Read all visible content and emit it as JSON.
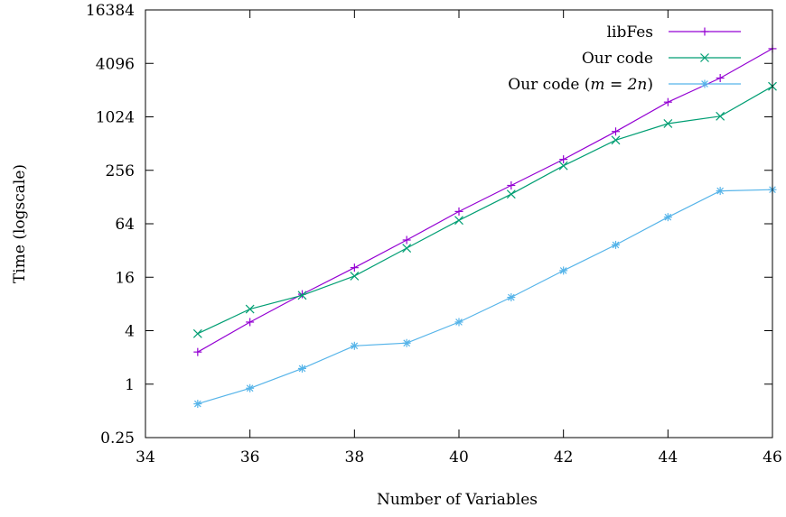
{
  "chart_data": {
    "type": "line",
    "xlabel": "Number of Variables",
    "ylabel": "Time (logscale)",
    "x_scale": "linear",
    "y_scale": "log2",
    "xlim": [
      34,
      46
    ],
    "ylim": [
      0.25,
      16384
    ],
    "x_ticks": [
      "34",
      "36",
      "38",
      "40",
      "42",
      "44",
      "46"
    ],
    "y_ticks": [
      "0.25",
      "1",
      "4",
      "16",
      "64",
      "256",
      "1024",
      "4096",
      "16384"
    ],
    "x_tick_values": [
      34,
      36,
      38,
      40,
      42,
      44,
      46
    ],
    "y_tick_values": [
      0.25,
      1,
      4,
      16,
      64,
      256,
      1024,
      4096,
      16384
    ],
    "legend_position": "top-right",
    "grid": false,
    "series": [
      {
        "name": "libFes",
        "color": "#9400d3",
        "marker": "plus",
        "x": [
          35,
          36,
          37,
          38,
          39,
          40,
          41,
          42,
          43,
          44,
          45,
          46
        ],
        "y": [
          2.3,
          5,
          10.3,
          20.5,
          42,
          88,
          173,
          340,
          700,
          1500,
          2800,
          6000
        ]
      },
      {
        "name": "Our code",
        "color": "#009e73",
        "marker": "cross",
        "x": [
          35,
          36,
          37,
          38,
          39,
          40,
          41,
          42,
          43,
          44,
          45,
          46
        ],
        "y": [
          3.7,
          7,
          10,
          16.5,
          34,
          70,
          138,
          288,
          560,
          860,
          1040,
          2260
        ]
      },
      {
        "name": "Our code (m = 2n)",
        "color": "#56b4e9",
        "marker": "star",
        "x": [
          35,
          36,
          37,
          38,
          39,
          40,
          41,
          42,
          43,
          44,
          45,
          46
        ],
        "y": [
          0.6,
          0.9,
          1.5,
          2.7,
          2.9,
          5,
          9.5,
          19,
          37,
          76,
          150,
          155
        ]
      }
    ]
  }
}
